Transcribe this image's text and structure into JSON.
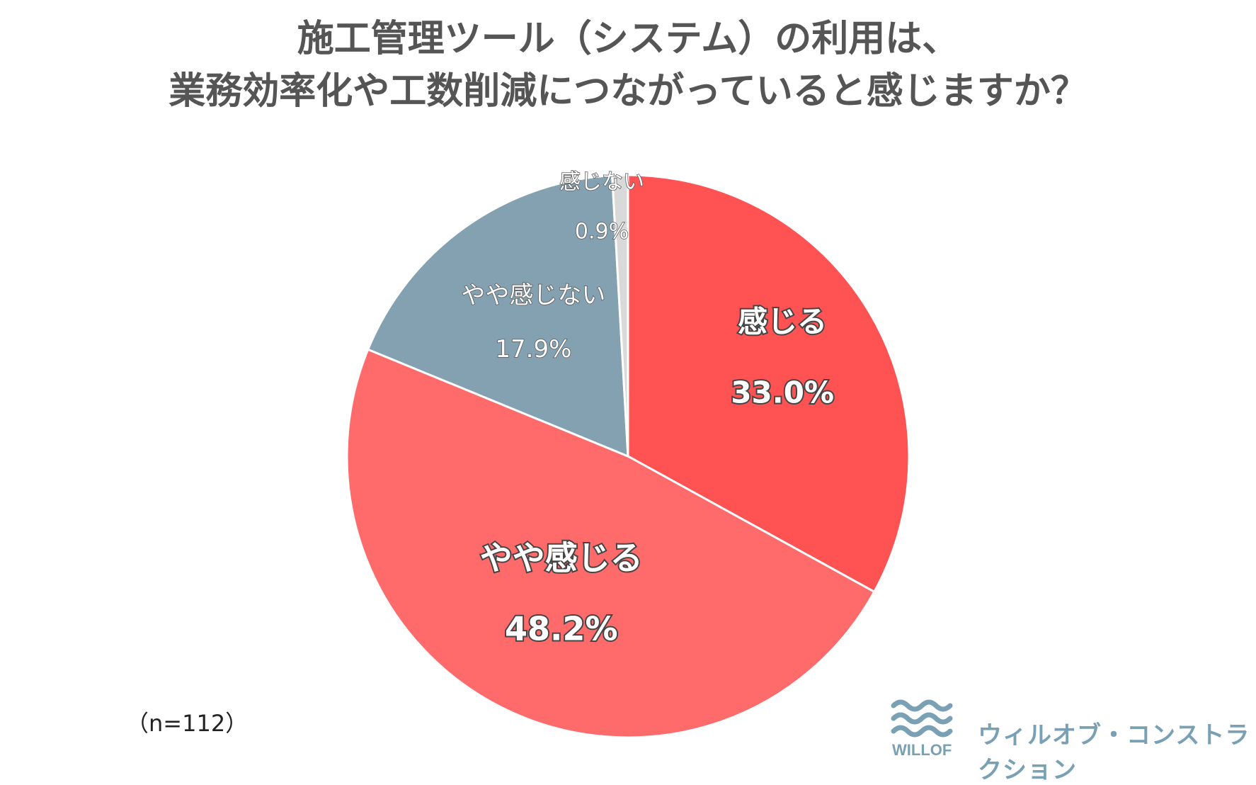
{
  "chart_data": {
    "type": "pie",
    "title_lines": [
      "施工管理ツール（システム）の利用は、",
      "業務効率化や工数削減につながっていると感じますか？"
    ],
    "sample_note": "（n=112）",
    "slices": [
      {
        "label": "感じる",
        "value": 33.0,
        "value_label": "33.0%",
        "color": "#ff5252"
      },
      {
        "label": "やや感じる",
        "value": 48.2,
        "value_label": "48.2%",
        "color": "#ff6b6b"
      },
      {
        "label": "やや感じない",
        "value": 17.9,
        "value_label": "17.9%",
        "color": "#83a1b1"
      },
      {
        "label": "感じない",
        "value": 0.9,
        "value_label": "0.9%",
        "color": "#d9d9d9"
      }
    ],
    "start": "12 o'clock",
    "direction": "clockwise"
  },
  "brand": {
    "logo_text": "WILLOF",
    "name": "ウィルオブ・コンストラクション",
    "color": "#7aa0b4"
  }
}
